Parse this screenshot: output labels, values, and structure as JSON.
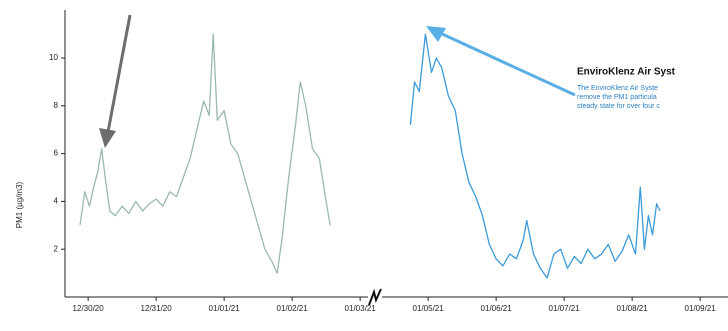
{
  "chart_data": {
    "type": "line",
    "y_label": "PM1 (µg/m3)",
    "xlim": [
      -0.34,
      9.41
    ],
    "ylim": [
      0,
      11.8
    ],
    "xticks": [
      {
        "value": 0,
        "label": "12/30/20"
      },
      {
        "value": 1,
        "label": "12/31/20"
      },
      {
        "value": 2,
        "label": "01/01/21"
      },
      {
        "value": 3,
        "label": "01/02/21"
      },
      {
        "value": 4,
        "label": "01/03/21"
      },
      {
        "value": 5,
        "label": "01/05/21"
      },
      {
        "value": 6,
        "label": "01/06/21"
      },
      {
        "value": 7,
        "label": "01/07/21"
      },
      {
        "value": 8,
        "label": "01/08/21"
      },
      {
        "value": 9,
        "label": "01/09/21"
      }
    ],
    "yticks": [
      2,
      4,
      6,
      8,
      10
    ],
    "series": [
      {
        "color": "#9bb8b3",
        "x": [
          -0.12,
          -0.05,
          0.02,
          0.08,
          0.14,
          0.2,
          0.26,
          0.32,
          0.4,
          0.5,
          0.6,
          0.7,
          0.8,
          0.9,
          1.0,
          1.1,
          1.2,
          1.3,
          1.4,
          1.5,
          1.6,
          1.7,
          1.78,
          1.84,
          1.9,
          2.0,
          2.1,
          2.2,
          2.3,
          2.4,
          2.5,
          2.6,
          2.7,
          2.78,
          2.85,
          2.95,
          3.05,
          3.12,
          3.2,
          3.3,
          3.4,
          3.5,
          3.56
        ],
        "values": [
          3.0,
          4.4,
          3.8,
          4.6,
          5.2,
          6.2,
          4.8,
          3.6,
          3.4,
          3.8,
          3.5,
          4.0,
          3.6,
          3.9,
          4.1,
          3.8,
          4.4,
          4.2,
          5.0,
          5.8,
          7.0,
          8.2,
          7.6,
          11.0,
          7.4,
          7.8,
          6.4,
          6.0,
          5.0,
          4.0,
          3.0,
          2.0,
          1.5,
          1.0,
          2.4,
          5.0,
          7.2,
          9.0,
          8.0,
          6.2,
          5.8,
          4.0,
          3.0
        ]
      },
      {
        "color": "#3b9ad9",
        "x": [
          4.74,
          4.8,
          4.87,
          4.96,
          5.05,
          5.12,
          5.2,
          5.3,
          5.4,
          5.5,
          5.6,
          5.7,
          5.8,
          5.9,
          6.0,
          6.1,
          6.2,
          6.3,
          6.4,
          6.45,
          6.55,
          6.65,
          6.75,
          6.85,
          6.95,
          7.05,
          7.15,
          7.25,
          7.35,
          7.45,
          7.55,
          7.65,
          7.75,
          7.85,
          7.95,
          8.05,
          8.12,
          8.18,
          8.24,
          8.3,
          8.36,
          8.41
        ],
        "values": [
          7.2,
          9.0,
          8.6,
          11.0,
          9.4,
          10.0,
          9.6,
          8.4,
          7.8,
          6.0,
          4.8,
          4.2,
          3.4,
          2.2,
          1.6,
          1.3,
          1.8,
          1.6,
          2.4,
          3.2,
          1.8,
          1.2,
          0.8,
          1.8,
          2.0,
          1.2,
          1.7,
          1.4,
          2.0,
          1.6,
          1.8,
          2.2,
          1.5,
          1.9,
          2.6,
          1.8,
          4.6,
          2.0,
          3.4,
          2.6,
          3.9,
          3.6
        ]
      }
    ],
    "annotation": {
      "title": "EnviroKlenz Air Syst",
      "lines": [
        "The EnviroKlenz Air Syste",
        "remove the PM1 particula",
        "steady state for over four c"
      ]
    }
  }
}
